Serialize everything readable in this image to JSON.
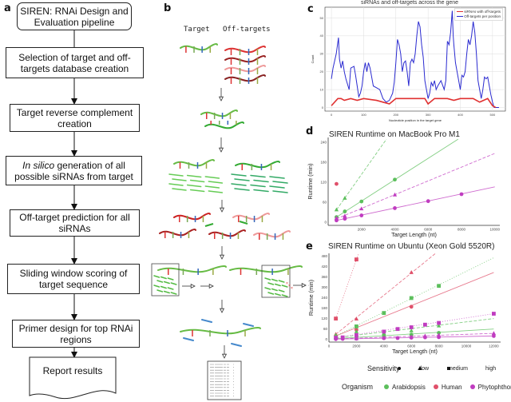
{
  "panels": {
    "a": "a",
    "b": "b",
    "c": "c",
    "d": "d",
    "e": "e"
  },
  "flowchart": {
    "steps": [
      "SIREN: RNAi Design and Evaluation pipeline",
      "Selection of target and off-targets database creation",
      "Target reverse complement creation",
      "generation of all possible siRNAs from target",
      "Off-target prediction for all siRNAs",
      "Sliding window scoring of target sequence",
      "Primer design for top RNAi regions",
      "Report results"
    ],
    "step4_italic": "In silico"
  },
  "schematic": {
    "target_label": "Target",
    "offtargets_label": "Off-targets"
  },
  "colors": {
    "arabidopsis": "#5cbf5c",
    "human": "#e0506a",
    "phytophthora": "#c03cc0",
    "sirna_line": "#e03030",
    "offtarget_line": "#2a2ad0"
  },
  "legends": {
    "sensitivity_title": "Sensitivity",
    "sensitivity": [
      {
        "label": "low",
        "shape": "circle"
      },
      {
        "label": "medium",
        "shape": "triangle"
      },
      {
        "label": "high",
        "shape": "square"
      }
    ],
    "organism_title": "Organism",
    "organism": [
      "Arabidopsis",
      "Human",
      "Phytophthora"
    ]
  },
  "chart_data": [
    {
      "type": "line",
      "title": "siRNAs and off-targets across the gene",
      "xlabel": "Nucleotide position in the target gene",
      "ylabel": "Count",
      "xlim": [
        -20,
        540
      ],
      "ylim": [
        -2,
        56
      ],
      "xticks": [
        0,
        100,
        200,
        300,
        400,
        500
      ],
      "yticks": [
        0,
        10,
        20,
        30,
        40,
        50
      ],
      "grid": true,
      "legend": "top-right",
      "series": [
        {
          "name": "siRNAs with off-targets",
          "color": "#e03030",
          "points": [
            [
              0,
              1
            ],
            [
              20,
              5
            ],
            [
              30,
              5
            ],
            [
              40,
              4
            ],
            [
              60,
              5
            ],
            [
              80,
              4
            ],
            [
              100,
              5
            ],
            [
              140,
              4
            ],
            [
              160,
              3
            ],
            [
              180,
              2
            ],
            [
              200,
              5
            ],
            [
              260,
              5
            ],
            [
              290,
              5
            ],
            [
              300,
              2
            ],
            [
              320,
              5
            ],
            [
              360,
              5
            ],
            [
              380,
              4
            ],
            [
              400,
              5
            ],
            [
              440,
              5
            ],
            [
              460,
              3
            ],
            [
              485,
              5
            ],
            [
              500,
              1
            ],
            [
              510,
              0
            ]
          ]
        },
        {
          "name": "Off-targets per position",
          "color": "#2a2ad0",
          "points": [
            [
              0,
              16
            ],
            [
              5,
              22
            ],
            [
              15,
              30
            ],
            [
              22,
              39
            ],
            [
              25,
              27
            ],
            [
              30,
              22
            ],
            [
              35,
              26
            ],
            [
              40,
              20
            ],
            [
              45,
              16
            ],
            [
              50,
              13
            ],
            [
              55,
              10
            ],
            [
              60,
              22
            ],
            [
              70,
              23
            ],
            [
              75,
              18
            ],
            [
              80,
              12
            ],
            [
              85,
              6
            ],
            [
              90,
              8
            ],
            [
              95,
              12
            ],
            [
              100,
              20
            ],
            [
              105,
              25
            ],
            [
              110,
              20
            ],
            [
              115,
              25
            ],
            [
              120,
              22
            ],
            [
              125,
              17
            ],
            [
              130,
              12
            ],
            [
              140,
              11
            ],
            [
              150,
              10
            ],
            [
              160,
              5
            ],
            [
              170,
              3
            ],
            [
              180,
              4
            ],
            [
              190,
              8
            ],
            [
              195,
              14
            ],
            [
              200,
              25
            ],
            [
              205,
              38
            ],
            [
              210,
              35
            ],
            [
              215,
              30
            ],
            [
              220,
              20
            ],
            [
              225,
              25
            ],
            [
              230,
              26
            ],
            [
              235,
              20
            ],
            [
              240,
              12
            ],
            [
              245,
              25
            ],
            [
              250,
              27
            ],
            [
              255,
              25
            ],
            [
              260,
              30
            ],
            [
              265,
              40
            ],
            [
              270,
              48
            ],
            [
              275,
              45
            ],
            [
              280,
              35
            ],
            [
              285,
              28
            ],
            [
              290,
              15
            ],
            [
              295,
              10
            ],
            [
              300,
              5
            ],
            [
              305,
              8
            ],
            [
              310,
              14
            ],
            [
              315,
              12
            ],
            [
              320,
              15
            ],
            [
              325,
              10
            ],
            [
              330,
              12
            ],
            [
              340,
              15
            ],
            [
              350,
              10
            ],
            [
              355,
              15
            ],
            [
              360,
              37
            ],
            [
              365,
              35
            ],
            [
              370,
              42
            ],
            [
              375,
              54
            ],
            [
              378,
              40
            ],
            [
              380,
              35
            ],
            [
              385,
              25
            ],
            [
              390,
              20
            ],
            [
              395,
              15
            ],
            [
              400,
              10
            ],
            [
              405,
              18
            ],
            [
              410,
              17
            ],
            [
              415,
              20
            ],
            [
              420,
              30
            ],
            [
              425,
              38
            ],
            [
              430,
              35
            ],
            [
              435,
              40
            ],
            [
              440,
              48
            ],
            [
              445,
              42
            ],
            [
              450,
              30
            ],
            [
              455,
              15
            ],
            [
              460,
              10
            ],
            [
              465,
              5
            ],
            [
              470,
              10
            ],
            [
              475,
              17
            ],
            [
              480,
              16
            ],
            [
              485,
              17
            ],
            [
              490,
              12
            ],
            [
              495,
              7
            ],
            [
              500,
              3
            ],
            [
              505,
              0
            ],
            [
              520,
              0
            ]
          ]
        }
      ]
    },
    {
      "type": "scatter",
      "title": "SIREN Runtime on MacBook Pro M1",
      "xlabel": "Target Length (nt)",
      "ylabel": "Runtime (min)",
      "xlim": [
        0,
        10300
      ],
      "ylim": [
        -10,
        255
      ],
      "xticks": [
        2000,
        4000,
        6000,
        8000,
        10000
      ],
      "yticks": [
        0,
        60,
        120,
        180,
        240
      ],
      "grid": false,
      "legend": "bottom",
      "series": [
        {
          "organism": "Arabidopsis",
          "sensitivity": "low",
          "points": [
            [
              500,
              15
            ],
            [
              1000,
              32
            ],
            [
              2000,
              62
            ],
            [
              4000,
              128
            ]
          ],
          "trend": [
            [
              500,
              15
            ],
            [
              7800,
              250
            ]
          ]
        },
        {
          "organism": "Arabidopsis",
          "sensitivity": "medium",
          "points": [
            [
              500,
              37
            ],
            [
              1000,
              72
            ]
          ],
          "trend": [
            [
              500,
              37
            ],
            [
              3500,
              250
            ]
          ]
        },
        {
          "organism": "Human",
          "sensitivity": "low",
          "points": [
            [
              500,
              115
            ]
          ]
        },
        {
          "organism": "Phytophthora",
          "sensitivity": "low",
          "points": [
            [
              500,
              5
            ],
            [
              1000,
              10
            ],
            [
              2000,
              20
            ],
            [
              4000,
              42
            ],
            [
              6000,
              63
            ],
            [
              8000,
              84
            ]
          ],
          "trend": [
            [
              500,
              5
            ],
            [
              10000,
              106
            ]
          ]
        },
        {
          "organism": "Phytophthora",
          "sensitivity": "medium",
          "points": [
            [
              500,
              12
            ],
            [
              1000,
              18
            ],
            [
              2000,
              40
            ],
            [
              4000,
              82
            ]
          ],
          "trend": [
            [
              500,
              10
            ],
            [
              10000,
              207
            ]
          ]
        }
      ]
    },
    {
      "type": "scatter",
      "title": "SIREN Runtime on Ubuntu (Xeon Gold 5520R)",
      "xlabel": "Target Length (nt)",
      "ylabel": "Runtime (min)",
      "xlim": [
        0,
        12500
      ],
      "ylim": [
        -15,
        495
      ],
      "xticks": [
        0,
        2000,
        4000,
        6000,
        8000,
        10000,
        12000
      ],
      "yticks": [
        0,
        60,
        120,
        180,
        240,
        300,
        360,
        420,
        480
      ],
      "grid": false,
      "legend": "bottom",
      "series": [
        {
          "organism": "Human",
          "sensitivity": "high",
          "points": [
            [
              500,
              120
            ],
            [
              2000,
              460
            ]
          ],
          "trend": [
            [
              500,
              120
            ],
            [
              2200,
              505
            ]
          ]
        },
        {
          "organism": "Human",
          "sensitivity": "medium",
          "points": [
            [
              500,
              30
            ],
            [
              2000,
              118
            ],
            [
              6000,
              385
            ]
          ],
          "trend": [
            [
              500,
              30
            ],
            [
              8000,
              510
            ]
          ]
        },
        {
          "organism": "Human",
          "sensitivity": "low",
          "points": [
            [
              2000,
              55
            ],
            [
              6000,
              188
            ]
          ],
          "trend": [
            [
              500,
              20
            ],
            [
              12000,
              385
            ]
          ]
        },
        {
          "organism": "Arabidopsis",
          "sensitivity": "high",
          "points": [
            [
              2000,
              75
            ],
            [
              4000,
              152
            ],
            [
              6000,
              238
            ],
            [
              8000,
              308
            ]
          ],
          "trend": [
            [
              500,
              20
            ],
            [
              12000,
              470
            ]
          ]
        },
        {
          "organism": "Arabidopsis",
          "sensitivity": "medium",
          "points": [
            [
              500,
              25
            ],
            [
              2000,
              45
            ],
            [
              4000,
              35
            ],
            [
              6000,
              50
            ],
            [
              8000,
              78
            ]
          ],
          "trend": [
            [
              500,
              10
            ],
            [
              12000,
              120
            ]
          ]
        },
        {
          "organism": "Arabidopsis",
          "sensitivity": "low",
          "points": [
            [
              500,
              5
            ],
            [
              2000,
              15
            ],
            [
              4000,
              20
            ],
            [
              6000,
              28
            ],
            [
              8000,
              38
            ]
          ],
          "trend": [
            [
              500,
              5
            ],
            [
              12000,
              60
            ]
          ]
        },
        {
          "organism": "Phytophthora",
          "sensitivity": "high",
          "points": [
            [
              500,
              10
            ],
            [
              1000,
              12
            ],
            [
              2000,
              25
            ],
            [
              4000,
              45
            ],
            [
              5000,
              60
            ],
            [
              6000,
              70
            ],
            [
              7000,
              85
            ],
            [
              8000,
              95
            ],
            [
              12000,
              148
            ]
          ],
          "trend": [
            [
              500,
              10
            ],
            [
              12000,
              148
            ]
          ]
        },
        {
          "organism": "Phytophthora",
          "sensitivity": "medium",
          "points": [
            [
              2000,
              5
            ],
            [
              4000,
              10
            ],
            [
              6000,
              15
            ],
            [
              7000,
              20
            ],
            [
              8000,
              25
            ],
            [
              12000,
              35
            ]
          ],
          "trend": [
            [
              500,
              3
            ],
            [
              12000,
              35
            ]
          ]
        },
        {
          "organism": "Phytophthora",
          "sensitivity": "low",
          "points": [
            [
              500,
              2
            ],
            [
              1000,
              3
            ],
            [
              2000,
              4
            ],
            [
              4000,
              7
            ],
            [
              5000,
              8
            ],
            [
              6000,
              10
            ],
            [
              7000,
              12
            ],
            [
              8000,
              13
            ],
            [
              12000,
              20
            ]
          ],
          "trend": [
            [
              500,
              2
            ],
            [
              12000,
              20
            ]
          ]
        }
      ]
    }
  ]
}
